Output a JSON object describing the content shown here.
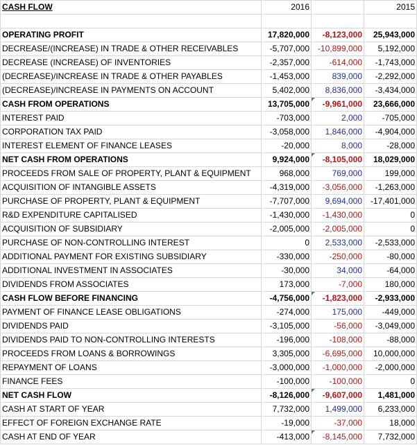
{
  "sheet": {
    "title": "CASH FLOW",
    "col_2016": "2016",
    "col_2015": "2015",
    "colors": {
      "positive_diff": "#1f2fa0",
      "negative_diff": "#b01818",
      "comment_flag": "#2e9e3a"
    },
    "rows": [
      {
        "label": "OPERATING PROFIT",
        "v2016": "17,820,000",
        "diff": "-8,123,000",
        "v2015": "25,943,000",
        "bold": true,
        "diff_sign": "neg"
      },
      {
        "label": "DECREASE/(INCREASE) IN TRADE & OTHER RECEIVABLES",
        "v2016": "-5,707,000",
        "diff": "-10,899,000",
        "v2015": "5,192,000",
        "bold": false,
        "diff_sign": "neg"
      },
      {
        "label": "DECREASE (INCREASE) OF INVENTORIES",
        "v2016": "-2,357,000",
        "diff": "-614,000",
        "v2015": "-1,743,000",
        "bold": false,
        "diff_sign": "neg"
      },
      {
        "label": "(DECREASE)/INCREASE IN TRADE & OTHER PAYABLES",
        "v2016": "-1,453,000",
        "diff": "839,000",
        "v2015": "-2,292,000",
        "bold": false,
        "diff_sign": "pos"
      },
      {
        "label": "(DECREASE)/INCREASE IN PAYMENTS ON ACCOUNT",
        "v2016": "5,402,000",
        "diff": "8,836,000",
        "v2015": "-3,434,000",
        "bold": false,
        "diff_sign": "pos"
      },
      {
        "label": "CASH FROM OPERATIONS",
        "v2016": "13,705,000",
        "diff": "-9,961,000",
        "v2015": "23,666,000",
        "bold": true,
        "diff_sign": "neg",
        "flag": true
      },
      {
        "label": "INTEREST PAID",
        "v2016": "-703,000",
        "diff": "2,000",
        "v2015": "-705,000",
        "bold": false,
        "diff_sign": "pos"
      },
      {
        "label": "CORPORATION TAX PAID",
        "v2016": "-3,058,000",
        "diff": "1,846,000",
        "v2015": "-4,904,000",
        "bold": false,
        "diff_sign": "pos"
      },
      {
        "label": "INTEREST ELEMENT OF FINANCE LEASES",
        "v2016": "-20,000",
        "diff": "8,000",
        "v2015": "-28,000",
        "bold": false,
        "diff_sign": "pos"
      },
      {
        "label": "NET CASH FROM OPERATIONS",
        "v2016": "9,924,000",
        "diff": "-8,105,000",
        "v2015": "18,029,000",
        "bold": true,
        "diff_sign": "neg",
        "flag": true
      },
      {
        "label": "PROCEEDS FROM SALE OF PROPERTY, PLANT & EQUIPMENT",
        "v2016": "968,000",
        "diff": "769,000",
        "v2015": "199,000",
        "bold": false,
        "diff_sign": "pos"
      },
      {
        "label": "ACQUISITION OF INTANGIBLE ASSETS",
        "v2016": "-4,319,000",
        "diff": "-3,056,000",
        "v2015": "-1,263,000",
        "bold": false,
        "diff_sign": "neg"
      },
      {
        "label": "PURCHASE OF PROPERTY, PLANT & EQUIPMENT",
        "v2016": "-7,707,000",
        "diff": "9,694,000",
        "v2015": "-17,401,000",
        "bold": false,
        "diff_sign": "pos"
      },
      {
        "label": "R&D EXPENDITURE CAPITALISED",
        "v2016": "-1,430,000",
        "diff": "-1,430,000",
        "v2015": "0",
        "bold": false,
        "diff_sign": "neg"
      },
      {
        "label": "ACQUISITION OF SUBSIDIARY",
        "v2016": "-2,005,000",
        "diff": "-2,005,000",
        "v2015": "0",
        "bold": false,
        "diff_sign": "neg"
      },
      {
        "label": "PURCHASE OF NON-CONTROLLING INTEREST",
        "v2016": "0",
        "diff": "2,533,000",
        "v2015": "-2,533,000",
        "bold": false,
        "diff_sign": "pos"
      },
      {
        "label": "ADDITIONAL PAYMENT FOR EXISTING SUBSIDIARY",
        "v2016": "-330,000",
        "diff": "-250,000",
        "v2015": "-80,000",
        "bold": false,
        "diff_sign": "neg"
      },
      {
        "label": "ADDITIONAL INVESTMENT IN ASSOCIATES",
        "v2016": "-30,000",
        "diff": "34,000",
        "v2015": "-64,000",
        "bold": false,
        "diff_sign": "pos"
      },
      {
        "label": "DIVIDENDS FROM ASSOCIATES",
        "v2016": "173,000",
        "diff": "-7,000",
        "v2015": "180,000",
        "bold": false,
        "diff_sign": "neg"
      },
      {
        "label": "CASH FLOW BEFORE FINANCING",
        "v2016": "-4,756,000",
        "diff": "-1,823,000",
        "v2015": "-2,933,000",
        "bold": true,
        "diff_sign": "neg",
        "flag": true
      },
      {
        "label": "PAYMENT OF FINANCE LEASE OBLIGATIONS",
        "v2016": "-274,000",
        "diff": "175,000",
        "v2015": "-449,000",
        "bold": false,
        "diff_sign": "pos"
      },
      {
        "label": "DIVIDENDS PAID",
        "v2016": "-3,105,000",
        "diff": "-56,000",
        "v2015": "-3,049,000",
        "bold": false,
        "diff_sign": "neg"
      },
      {
        "label": "DIVIDENDS PAID TO NON-CONTROLLING INTERESTS",
        "v2016": "-196,000",
        "diff": "-108,000",
        "v2015": "-88,000",
        "bold": false,
        "diff_sign": "neg"
      },
      {
        "label": "PROCEEDS FROM LOANS & BORROWINGS",
        "v2016": "3,305,000",
        "diff": "-6,695,000",
        "v2015": "10,000,000",
        "bold": false,
        "diff_sign": "neg"
      },
      {
        "label": "REPAYMENT OF LOANS",
        "v2016": "-3,000,000",
        "diff": "-1,000,000",
        "v2015": "-2,000,000",
        "bold": false,
        "diff_sign": "neg"
      },
      {
        "label": "FINANCE FEES",
        "v2016": "-100,000",
        "diff": "-100,000",
        "v2015": "0",
        "bold": false,
        "diff_sign": "neg"
      },
      {
        "label": "NET CASH FLOW",
        "v2016": "-8,126,000",
        "diff": "-9,607,000",
        "v2015": "1,481,000",
        "bold": true,
        "diff_sign": "neg",
        "flag": true
      },
      {
        "label": "CASH AT START OF YEAR",
        "v2016": "7,732,000",
        "diff": "1,499,000",
        "v2015": "6,233,000",
        "bold": false,
        "diff_sign": "pos"
      },
      {
        "label": "EFFECT OF FOREIGN EXCHANGE RATE",
        "v2016": "-19,000",
        "diff": "-37,000",
        "v2015": "18,000",
        "bold": false,
        "diff_sign": "neg"
      },
      {
        "label": "CASH AT END OF YEAR",
        "v2016": "-413,000",
        "diff": "-8,145,000",
        "v2015": "7,732,000",
        "bold": false,
        "diff_sign": "neg",
        "flag": true
      }
    ]
  }
}
